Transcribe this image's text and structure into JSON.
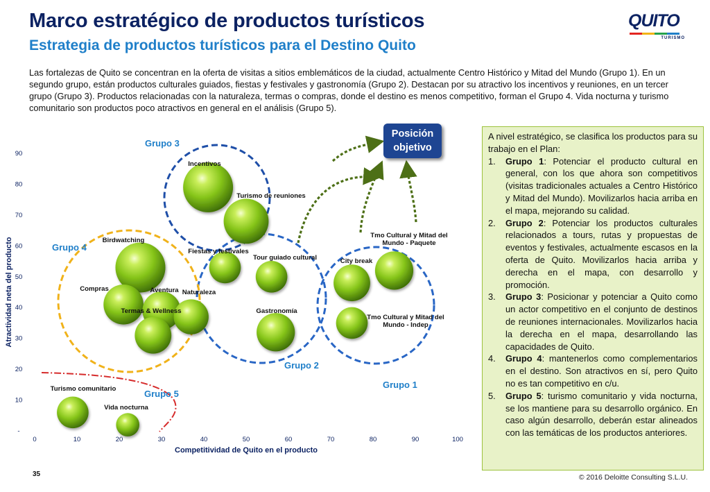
{
  "header": {
    "title": "Marco estratégico de productos turísticos",
    "subtitle": "Estrategia de productos turísticos para el Destino Quito",
    "intro": "Las fortalezas de Quito se concentran en la oferta de visitas a sitios emblemáticos de la ciudad, actualmente Centro Histórico y Mitad del Mundo (Grupo 1). En un segundo grupo, están productos culturales guiados, fiestas y festivales y gastronomía (Grupo 2). Destacan por su atractivo los incentivos y reuniones, en un tercer grupo (Grupo 3). Productos relacionadas con la naturaleza, termas o compras, donde el destino es menos competitivo, forman el Grupo 4. Vida nocturna y turismo comunitario son productos poco atractivos en general en el análisis (Grupo 5)."
  },
  "logo": {
    "word": "QUITO",
    "sub": "TURISMO",
    "colors": [
      "#e32521",
      "#f2b417",
      "#25a24b",
      "#1f7fc9"
    ]
  },
  "target_box": {
    "label_line1": "Posición",
    "label_line2": "objetivo"
  },
  "colors": {
    "navy": "#0c2262",
    "blue": "#1f7fc9",
    "bubble": "#84c21b",
    "group1_circle": "#2966c5",
    "group2_circle": "#2966c5",
    "group3_circle": "#1f4fa8",
    "group4_circle": "#f0b21a",
    "group5_line": "#d62b2b",
    "arrow": "#4d6f16"
  },
  "chart_data": {
    "type": "scatter",
    "xlabel": "Competitividad de Quito en el producto",
    "ylabel": "Atractividad neta del producto",
    "xlim": [
      0,
      100
    ],
    "ylim": [
      0,
      90
    ],
    "xticks": [
      "0",
      "10",
      "20",
      "30",
      "40",
      "50",
      "60",
      "70",
      "80",
      "90",
      "100"
    ],
    "yticks": [
      "-",
      "10",
      "20",
      "30",
      "40",
      "50",
      "60",
      "70",
      "80",
      "90"
    ],
    "grid": false,
    "points": [
      {
        "label": "Incentivos",
        "x": 41,
        "y": 79,
        "size": 3
      },
      {
        "label": "Turismo de reuniones",
        "x": 50,
        "y": 68,
        "size": 2.7
      },
      {
        "label": "Birdwatching",
        "x": 25,
        "y": 53,
        "size": 3
      },
      {
        "label": "Compras",
        "x": 21,
        "y": 41,
        "size": 2.4
      },
      {
        "label": "Aventura",
        "x": 30,
        "y": 39,
        "size": 2.3
      },
      {
        "label": "Termas & Wellness",
        "x": 28,
        "y": 31,
        "size": 2.2
      },
      {
        "label": "Naturaleza",
        "x": 37,
        "y": 37,
        "size": 2.1
      },
      {
        "label": "Fiestas y festivales",
        "x": 45,
        "y": 53,
        "size": 1.9
      },
      {
        "label": "Tour guiado cultural",
        "x": 56,
        "y": 50,
        "size": 1.9
      },
      {
        "label": "Gastronomía",
        "x": 57,
        "y": 32,
        "size": 2.3
      },
      {
        "label": "City break",
        "x": 75,
        "y": 48,
        "size": 2.2
      },
      {
        "label": "Tmo Cultural y Mitad del Mundo - Paquete",
        "x": 85,
        "y": 52,
        "size": 2.3
      },
      {
        "label": "Tmo Cultural y Mitad del Mundo - Indep",
        "x": 75,
        "y": 35,
        "size": 1.9
      },
      {
        "label": "Turismo comunitario",
        "x": 9,
        "y": 6,
        "size": 1.9
      },
      {
        "label": "Vida nocturna",
        "x": 22,
        "y": 2,
        "size": 1.4
      }
    ],
    "groups": [
      {
        "name": "Grupo 1"
      },
      {
        "name": "Grupo 2"
      },
      {
        "name": "Grupo 3"
      },
      {
        "name": "Grupo 4"
      },
      {
        "name": "Grupo 5"
      }
    ]
  },
  "side_panel": {
    "intro": "A nivel estratégico, se clasifica los productos para su trabajo en el Plan:",
    "items": [
      {
        "num": "1.",
        "bold": "Grupo 1",
        "text": ": Potenciar el producto cultural en general, con los que ahora son competitivos (visitas tradicionales actuales a Centro Histórico y Mitad del Mundo). Movilizarlos hacia arriba en el mapa, mejorando su calidad."
      },
      {
        "num": "2.",
        "bold": "Grupo 2",
        "text": ": Potenciar los productos culturales relacionados a tours, rutas y propuestas de eventos y festivales, actualmente escasos en la oferta de Quito. Movilizarlos hacia arriba y derecha en el mapa, con desarrollo y promoción."
      },
      {
        "num": "3.",
        "bold": "Grupo 3",
        "text": ": Posicionar y potenciar a Quito como un actor competitivo en el conjunto de destinos de reuniones internacionales. Movilizarlos hacia la derecha en el mapa, desarrollando las capacidades de Quito."
      },
      {
        "num": "4.",
        "bold": "Grupo 4",
        "text": ": mantenerlos como complementarios en el destino. Son atractivos en sí, pero Quito no es tan competitivo en c/u."
      },
      {
        "num": "5.",
        "bold": "Grupo 5",
        "text": ": turismo comunitario y vida nocturna, se los mantiene para su desarrollo orgánico. En caso algún desarrollo, deberán estar alineados con las temáticas de los productos anteriores."
      }
    ]
  },
  "footer": {
    "page": "35",
    "copyright": "© 2016 Deloitte Consulting S.L.U."
  }
}
